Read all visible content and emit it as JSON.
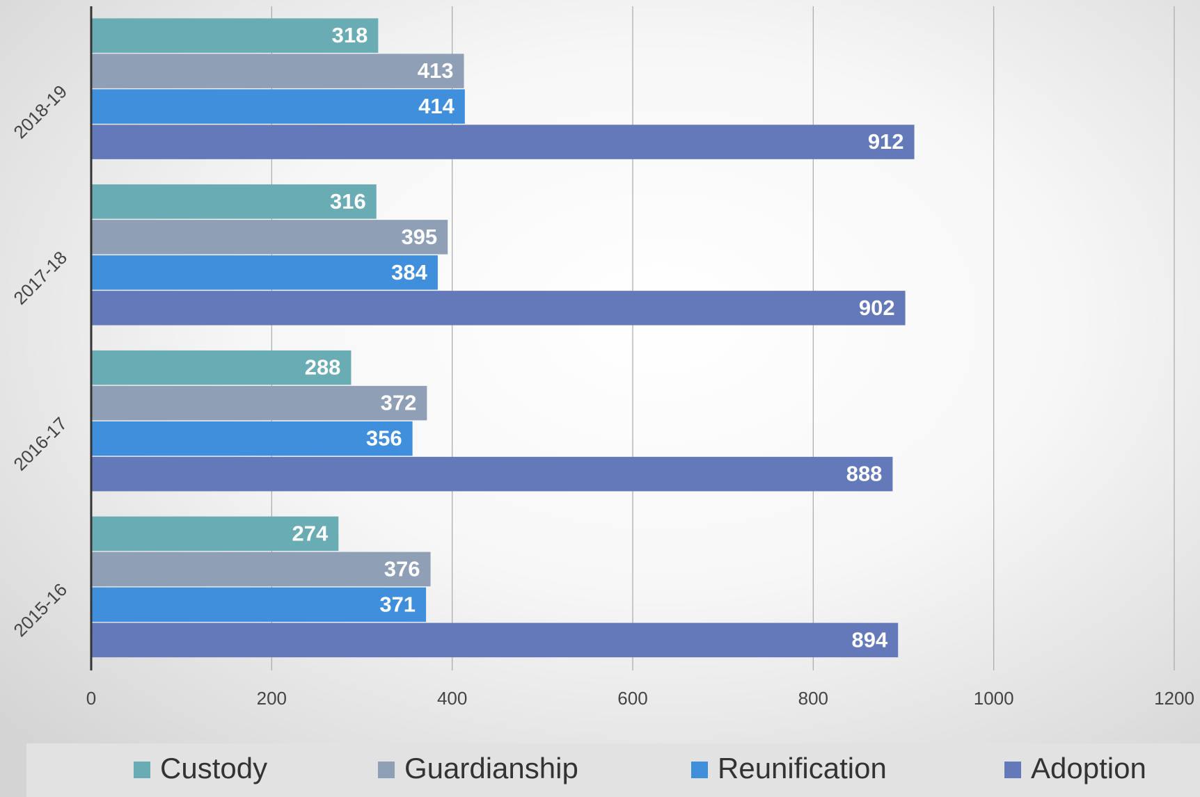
{
  "chart_data": {
    "type": "hbar",
    "categories": [
      "2015-16",
      "2016-17",
      "2017-18",
      "2018-19"
    ],
    "series": [
      {
        "name": "Custody",
        "color": "#6aacb4",
        "values": [
          274,
          288,
          316,
          318
        ]
      },
      {
        "name": "Guardianship",
        "color": "#8e9fb6",
        "values": [
          376,
          372,
          395,
          413
        ]
      },
      {
        "name": "Reunification",
        "color": "#3f8fdc",
        "values": [
          371,
          356,
          384,
          414
        ]
      },
      {
        "name": "Adoption",
        "color": "#6479b9",
        "values": [
          894,
          888,
          902,
          912
        ]
      }
    ],
    "xlim": [
      0,
      1200
    ],
    "xticks": [
      0,
      200,
      400,
      600,
      800,
      1000,
      1200
    ],
    "grid": true,
    "legend": "bottom"
  }
}
